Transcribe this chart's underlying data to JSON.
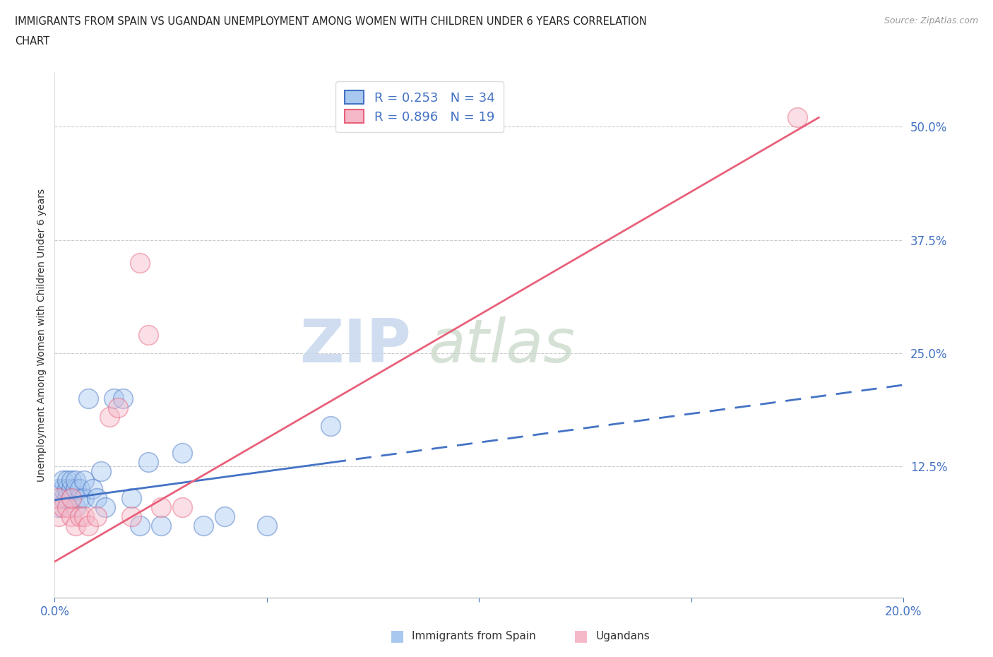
{
  "title_line1": "IMMIGRANTS FROM SPAIN VS UGANDAN UNEMPLOYMENT AMONG WOMEN WITH CHILDREN UNDER 6 YEARS CORRELATION",
  "title_line2": "CHART",
  "source": "Source: ZipAtlas.com",
  "ylabel": "Unemployment Among Women with Children Under 6 years",
  "xlim": [
    0.0,
    0.2
  ],
  "ylim": [
    -0.02,
    0.56
  ],
  "yticks": [
    0.0,
    0.125,
    0.25,
    0.375,
    0.5
  ],
  "ytick_labels": [
    "",
    "12.5%",
    "25.0%",
    "37.5%",
    "50.0%"
  ],
  "xticks": [
    0.0,
    0.05,
    0.1,
    0.15,
    0.2
  ],
  "xtick_labels": [
    "0.0%",
    "",
    "",
    "",
    "20.0%"
  ],
  "legend_label1": "Immigrants from Spain",
  "legend_label2": "Ugandans",
  "R1": 0.253,
  "N1": 34,
  "R2": 0.896,
  "N2": 19,
  "color1": "#a8c8f0",
  "color2": "#f5b8c8",
  "trendline1_color": "#4472c4",
  "trendline2_color": "#e8607a",
  "background_color": "#ffffff",
  "scatter1_x": [
    0.001,
    0.001,
    0.002,
    0.002,
    0.002,
    0.003,
    0.003,
    0.003,
    0.004,
    0.004,
    0.004,
    0.005,
    0.005,
    0.005,
    0.006,
    0.006,
    0.007,
    0.007,
    0.008,
    0.009,
    0.01,
    0.011,
    0.012,
    0.014,
    0.016,
    0.018,
    0.02,
    0.022,
    0.025,
    0.03,
    0.035,
    0.04,
    0.05,
    0.065
  ],
  "scatter1_y": [
    0.08,
    0.1,
    0.09,
    0.1,
    0.11,
    0.09,
    0.1,
    0.11,
    0.09,
    0.1,
    0.11,
    0.08,
    0.1,
    0.11,
    0.09,
    0.1,
    0.09,
    0.11,
    0.2,
    0.1,
    0.09,
    0.12,
    0.08,
    0.2,
    0.2,
    0.09,
    0.06,
    0.13,
    0.06,
    0.14,
    0.06,
    0.07,
    0.06,
    0.17
  ],
  "scatter2_x": [
    0.001,
    0.001,
    0.002,
    0.003,
    0.004,
    0.004,
    0.005,
    0.006,
    0.007,
    0.008,
    0.01,
    0.013,
    0.015,
    0.018,
    0.02,
    0.022,
    0.025,
    0.03,
    0.175
  ],
  "scatter2_y": [
    0.07,
    0.09,
    0.08,
    0.08,
    0.07,
    0.09,
    0.06,
    0.07,
    0.07,
    0.06,
    0.07,
    0.18,
    0.19,
    0.07,
    0.35,
    0.27,
    0.08,
    0.08,
    0.51
  ],
  "trend1_x0": 0.0,
  "trend1_y0": 0.088,
  "trend1_x1": 0.2,
  "trend1_y1": 0.215,
  "trend2_x0": 0.0,
  "trend2_y0": 0.02,
  "trend2_x1": 0.18,
  "trend2_y1": 0.51
}
